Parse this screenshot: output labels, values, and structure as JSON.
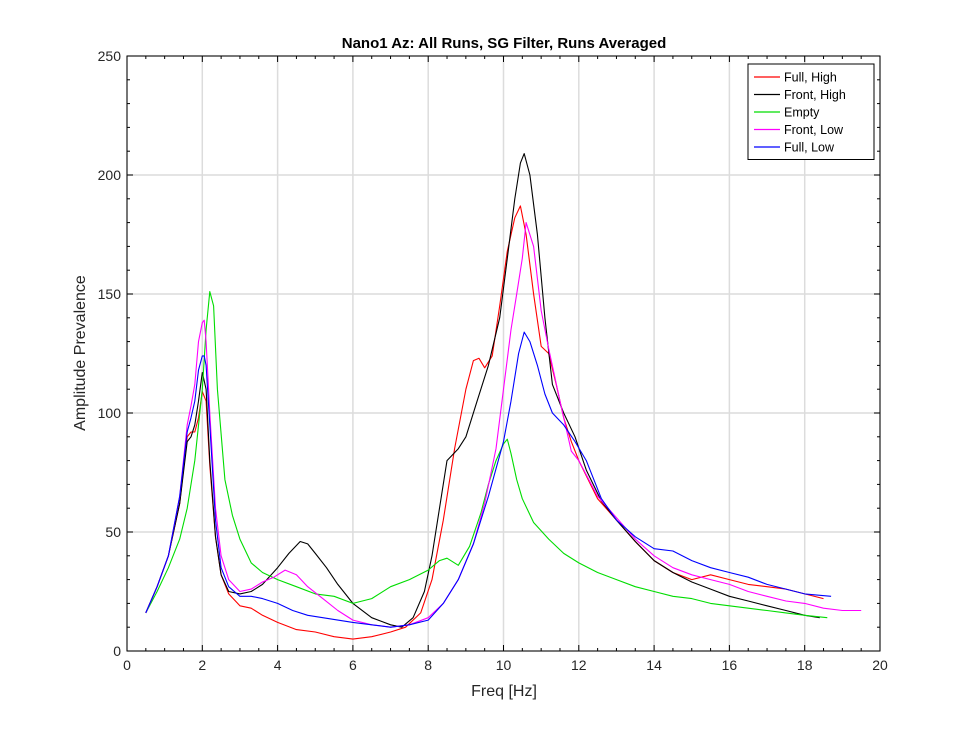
{
  "chart_data": {
    "type": "line",
    "title": "Nano1 Az: All Runs, SG Filter, Runs Averaged",
    "xlabel": "Freq [Hz]",
    "ylabel": "Amplitude Prevalence",
    "xlim": [
      0,
      20
    ],
    "ylim": [
      0,
      250
    ],
    "xticks": [
      0,
      2,
      4,
      6,
      8,
      10,
      12,
      14,
      16,
      18,
      20
    ],
    "yticks": [
      0,
      50,
      100,
      150,
      200,
      250
    ],
    "xtick_labels": [
      "0",
      "2",
      "4",
      "6",
      "8",
      "10",
      "12",
      "14",
      "16",
      "18",
      "20"
    ],
    "ytick_labels": [
      "0",
      "50",
      "100",
      "150",
      "200",
      "250"
    ],
    "grid": true,
    "legend_position": "top-right",
    "series": [
      {
        "name": "Full, High",
        "color": "#ff0000",
        "x": [
          0.5,
          0.8,
          1.1,
          1.4,
          1.6,
          1.7,
          1.8,
          1.9,
          2.0,
          2.1,
          2.2,
          2.35,
          2.5,
          2.7,
          3.0,
          3.3,
          3.6,
          4.0,
          4.5,
          5.0,
          5.5,
          6.0,
          6.5,
          7.0,
          7.4,
          7.8,
          8.1,
          8.4,
          8.7,
          9.0,
          9.2,
          9.35,
          9.5,
          9.7,
          9.9,
          10.1,
          10.3,
          10.45,
          10.6,
          10.8,
          11.0,
          11.2,
          11.4,
          11.6,
          11.8,
          12.0,
          12.5,
          13.0,
          13.5,
          14.0,
          14.5,
          15.0,
          15.5,
          16.0,
          16.5,
          17.0,
          17.5,
          18.0,
          18.5
        ],
        "y": [
          16,
          27,
          40,
          62,
          90,
          92,
          92,
          98,
          109,
          105,
          78,
          48,
          32,
          24,
          19,
          18,
          15,
          12,
          9,
          8,
          6,
          5,
          6,
          8,
          10,
          16,
          30,
          55,
          85,
          110,
          122,
          123,
          119,
          124,
          145,
          168,
          182,
          187,
          175,
          150,
          128,
          125,
          112,
          98,
          88,
          80,
          64,
          55,
          46,
          38,
          33,
          30,
          32,
          30,
          28,
          27,
          26,
          24,
          22
        ]
      },
      {
        "name": "Front, High",
        "color": "#000000",
        "x": [
          0.5,
          0.8,
          1.1,
          1.4,
          1.6,
          1.7,
          1.8,
          1.9,
          2.0,
          2.1,
          2.2,
          2.35,
          2.5,
          2.7,
          3.0,
          3.3,
          3.6,
          4.0,
          4.3,
          4.6,
          4.8,
          5.0,
          5.3,
          5.6,
          6.0,
          6.5,
          7.0,
          7.3,
          7.6,
          7.9,
          8.1,
          8.3,
          8.5,
          8.8,
          9.0,
          9.3,
          9.6,
          9.9,
          10.1,
          10.3,
          10.45,
          10.55,
          10.7,
          10.9,
          11.1,
          11.3,
          11.6,
          11.9,
          12.2,
          12.6,
          13.0,
          13.5,
          14.0,
          14.5,
          15.0,
          15.5,
          16.0,
          16.5,
          17.0,
          17.5,
          18.0,
          18.4
        ],
        "y": [
          16,
          27,
          40,
          62,
          88,
          90,
          95,
          105,
          117,
          110,
          80,
          48,
          32,
          25,
          24,
          25,
          28,
          35,
          41,
          46,
          45,
          41,
          35,
          28,
          20,
          14,
          11,
          10,
          14,
          25,
          40,
          60,
          80,
          85,
          90,
          105,
          120,
          140,
          165,
          190,
          205,
          209,
          200,
          175,
          140,
          112,
          100,
          90,
          76,
          63,
          55,
          46,
          38,
          33,
          29,
          26,
          23,
          21,
          19,
          17,
          15,
          14
        ]
      },
      {
        "name": "Empty",
        "color": "#00dd00",
        "x": [
          0.5,
          0.8,
          1.1,
          1.4,
          1.6,
          1.8,
          2.0,
          2.1,
          2.2,
          2.3,
          2.4,
          2.6,
          2.8,
          3.0,
          3.3,
          3.6,
          4.0,
          4.5,
          5.0,
          5.5,
          6.0,
          6.5,
          7.0,
          7.5,
          8.0,
          8.3,
          8.5,
          8.8,
          9.1,
          9.4,
          9.6,
          9.8,
          10.0,
          10.1,
          10.2,
          10.35,
          10.5,
          10.8,
          11.2,
          11.6,
          12.0,
          12.5,
          13.0,
          13.5,
          14.0,
          14.5,
          15.0,
          15.5,
          16.0,
          16.5,
          17.0,
          17.5,
          18.0,
          18.6
        ],
        "y": [
          16,
          25,
          35,
          47,
          60,
          80,
          110,
          135,
          151,
          145,
          110,
          72,
          57,
          47,
          37,
          33,
          30,
          27,
          24,
          23,
          20,
          22,
          27,
          30,
          34,
          38,
          39,
          36,
          44,
          58,
          70,
          80,
          87,
          89,
          83,
          72,
          64,
          54,
          47,
          41,
          37,
          33,
          30,
          27,
          25,
          23,
          22,
          20,
          19,
          18,
          17,
          16,
          15,
          14
        ]
      },
      {
        "name": "Front, Low",
        "color": "#ff00ff",
        "x": [
          0.5,
          0.8,
          1.1,
          1.4,
          1.6,
          1.7,
          1.8,
          1.9,
          2.0,
          2.05,
          2.1,
          2.2,
          2.35,
          2.5,
          2.7,
          3.0,
          3.3,
          3.6,
          3.9,
          4.2,
          4.5,
          4.8,
          5.2,
          5.6,
          6.0,
          6.5,
          7.0,
          7.5,
          8.0,
          8.4,
          8.8,
          9.2,
          9.5,
          9.8,
          10.0,
          10.2,
          10.35,
          10.5,
          10.6,
          10.8,
          11.0,
          11.2,
          11.5,
          11.8,
          12.0,
          12.5,
          13.0,
          13.5,
          14.0,
          14.5,
          15.0,
          15.5,
          16.0,
          16.5,
          17.0,
          17.5,
          18.0,
          18.5,
          19.0,
          19.5
        ],
        "y": [
          16,
          27,
          40,
          65,
          95,
          103,
          112,
          130,
          138,
          139,
          130,
          100,
          60,
          40,
          30,
          25,
          26,
          29,
          31,
          34,
          32,
          27,
          22,
          17,
          13,
          11,
          10,
          11,
          14,
          20,
          30,
          45,
          62,
          85,
          110,
          135,
          150,
          165,
          180,
          170,
          143,
          127,
          105,
          84,
          80,
          65,
          56,
          47,
          40,
          35,
          32,
          30,
          28,
          25,
          23,
          21,
          20,
          18,
          17,
          17
        ]
      },
      {
        "name": "Full, Low",
        "color": "#0000ff",
        "x": [
          0.5,
          0.8,
          1.1,
          1.4,
          1.6,
          1.7,
          1.8,
          1.9,
          2.0,
          2.05,
          2.1,
          2.2,
          2.35,
          2.5,
          2.7,
          3.0,
          3.3,
          3.6,
          4.0,
          4.4,
          4.8,
          5.2,
          5.6,
          6.0,
          6.5,
          7.0,
          7.5,
          8.0,
          8.4,
          8.8,
          9.2,
          9.6,
          10.0,
          10.2,
          10.4,
          10.55,
          10.7,
          10.9,
          11.1,
          11.3,
          11.6,
          11.9,
          12.2,
          12.6,
          13.0,
          13.5,
          14.0,
          14.5,
          15.0,
          15.5,
          16.0,
          16.5,
          17.0,
          17.5,
          18.0,
          18.7
        ],
        "y": [
          16,
          27,
          40,
          65,
          92,
          98,
          105,
          118,
          124,
          124,
          120,
          95,
          55,
          35,
          27,
          23,
          23,
          22,
          20,
          17,
          15,
          14,
          13,
          12,
          11,
          10,
          11,
          13,
          20,
          30,
          45,
          65,
          88,
          105,
          125,
          134,
          130,
          120,
          108,
          100,
          95,
          88,
          80,
          64,
          55,
          48,
          43,
          42,
          38,
          35,
          33,
          31,
          28,
          26,
          24,
          23
        ]
      }
    ]
  }
}
